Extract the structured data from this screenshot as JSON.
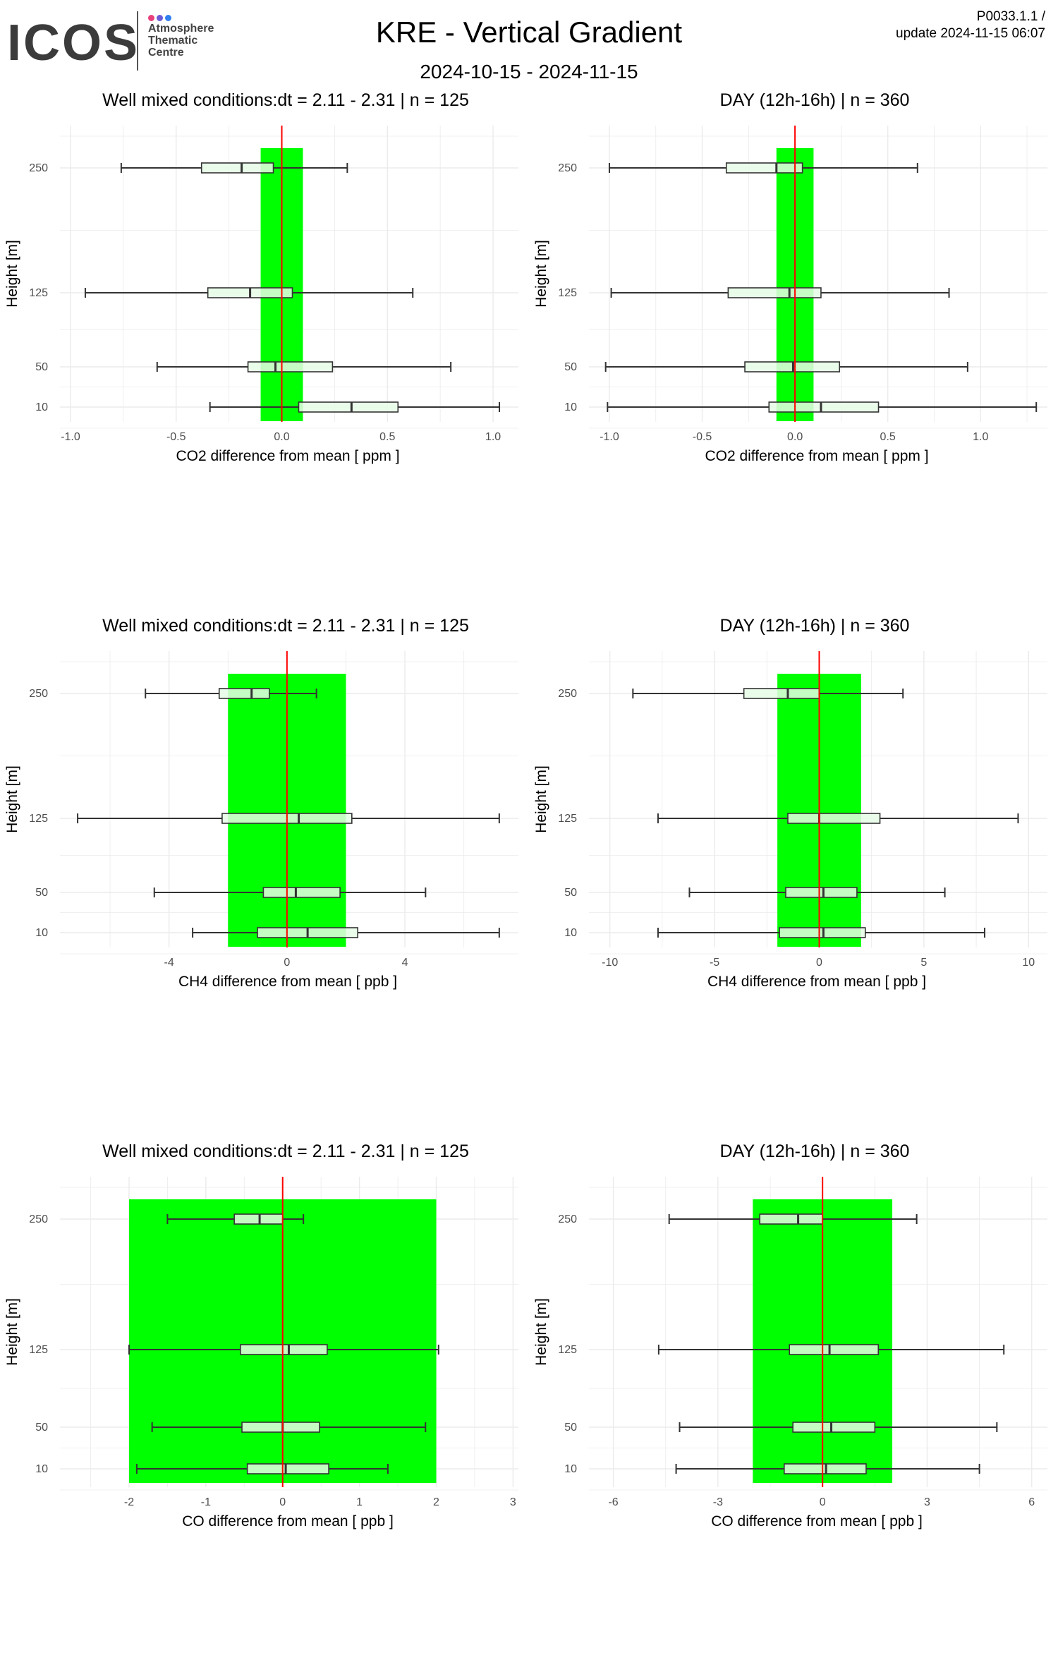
{
  "header": {
    "logo_text": "ICOS",
    "logo_sub": [
      "Atmosphere",
      "Thematic",
      "Centre"
    ],
    "title": "KRE - Vertical Gradient",
    "date_range": "2024-10-15 - 2024-11-15",
    "product_id": "P0033.1.1 /",
    "update": "update  2024-11-15 06:07"
  },
  "colors": {
    "band": "#00ff00",
    "zero_line": "#ff0000",
    "box_fill": "#e6fbe6",
    "box_stroke": "#333333",
    "grid": "#ebebeb",
    "logo_dots": [
      "#e7407a",
      "#6b5bd6",
      "#2f7ff0"
    ]
  },
  "chart_data": [
    {
      "id": "co2-well-mixed",
      "type": "boxplot",
      "title": "Well mixed conditions:dt = 2.11 - 2.31 | n = 125",
      "xlabel": "CO2  difference from mean [ ppm ]",
      "ylabel": "Height [m]",
      "xlim": [
        -1.05,
        1.12
      ],
      "xticks": [
        -1.0,
        -0.5,
        0.0,
        0.5,
        1.0
      ],
      "xtick_labels": [
        "-1.0",
        "-0.5",
        "0.0",
        "0.5",
        "1.0"
      ],
      "heights": [
        10,
        50,
        125,
        250
      ],
      "band": [
        -0.1,
        0.1
      ],
      "boxes": [
        {
          "height": 250,
          "whisker_low": -0.76,
          "q1": -0.38,
          "median": -0.19,
          "q3": -0.04,
          "whisker_high": 0.31
        },
        {
          "height": 125,
          "whisker_low": -0.93,
          "q1": -0.35,
          "median": -0.15,
          "q3": 0.05,
          "whisker_high": 0.62
        },
        {
          "height": 50,
          "whisker_low": -0.59,
          "q1": -0.16,
          "median": -0.03,
          "q3": 0.24,
          "whisker_high": 0.8
        },
        {
          "height": 10,
          "whisker_low": -0.34,
          "q1": 0.08,
          "median": 0.33,
          "q3": 0.55,
          "whisker_high": 1.03
        }
      ]
    },
    {
      "id": "co2-day",
      "type": "boxplot",
      "title": "DAY (12h-16h) | n = 360",
      "xlabel": "CO2  difference from mean [ ppm ]",
      "ylabel": "Height [m]",
      "xlim": [
        -1.11,
        1.36
      ],
      "xticks": [
        -1.0,
        -0.5,
        0.0,
        0.5,
        1.0
      ],
      "xtick_labels": [
        "-1.0",
        "-0.5",
        "0.0",
        "0.5",
        "1.0"
      ],
      "heights": [
        10,
        50,
        125,
        250
      ],
      "band": [
        -0.1,
        0.1
      ],
      "boxes": [
        {
          "height": 250,
          "whisker_low": -1.0,
          "q1": -0.37,
          "median": -0.1,
          "q3": 0.04,
          "whisker_high": 0.66
        },
        {
          "height": 125,
          "whisker_low": -0.99,
          "q1": -0.36,
          "median": -0.03,
          "q3": 0.14,
          "whisker_high": 0.83
        },
        {
          "height": 50,
          "whisker_low": -1.02,
          "q1": -0.27,
          "median": -0.01,
          "q3": 0.24,
          "whisker_high": 0.93
        },
        {
          "height": 10,
          "whisker_low": -1.01,
          "q1": -0.14,
          "median": 0.14,
          "q3": 0.45,
          "whisker_high": 1.3
        }
      ]
    },
    {
      "id": "ch4-well-mixed",
      "type": "boxplot",
      "title": "Well mixed conditions:dt = 2.11 - 2.31 | n = 125",
      "xlabel": "CH4  difference from mean [ ppb ]",
      "ylabel": "Height [m]",
      "xlim": [
        -7.7,
        7.85
      ],
      "xticks": [
        -4,
        0,
        4
      ],
      "xtick_labels": [
        "-4",
        "0",
        "4"
      ],
      "heights": [
        10,
        50,
        125,
        250
      ],
      "band": [
        -2,
        2
      ],
      "boxes": [
        {
          "height": 250,
          "whisker_low": -4.8,
          "q1": -2.3,
          "median": -1.2,
          "q3": -0.6,
          "whisker_high": 1.0
        },
        {
          "height": 125,
          "whisker_low": -7.1,
          "q1": -2.2,
          "median": 0.4,
          "q3": 2.2,
          "whisker_high": 7.2
        },
        {
          "height": 50,
          "whisker_low": -4.5,
          "q1": -0.8,
          "median": 0.3,
          "q3": 1.8,
          "whisker_high": 4.7
        },
        {
          "height": 10,
          "whisker_low": -3.2,
          "q1": -1.0,
          "median": 0.7,
          "q3": 2.4,
          "whisker_high": 7.2
        }
      ]
    },
    {
      "id": "ch4-day",
      "type": "boxplot",
      "title": "DAY (12h-16h) | n = 360",
      "xlabel": "CH4  difference from mean [ ppb ]",
      "ylabel": "Height [m]",
      "xlim": [
        -11.0,
        10.9
      ],
      "xticks": [
        -10,
        -5,
        0,
        5,
        10
      ],
      "xtick_labels": [
        "-10",
        "-5",
        "0",
        "5",
        "10"
      ],
      "heights": [
        10,
        50,
        125,
        250
      ],
      "band": [
        -2,
        2
      ],
      "boxes": [
        {
          "height": 250,
          "whisker_low": -8.9,
          "q1": -3.6,
          "median": -1.5,
          "q3": 0.0,
          "whisker_high": 4.0
        },
        {
          "height": 125,
          "whisker_low": -7.7,
          "q1": -1.5,
          "median": 0.0,
          "q3": 2.9,
          "whisker_high": 9.5
        },
        {
          "height": 50,
          "whisker_low": -6.2,
          "q1": -1.6,
          "median": 0.2,
          "q3": 1.8,
          "whisker_high": 6.0
        },
        {
          "height": 10,
          "whisker_low": -7.7,
          "q1": -1.9,
          "median": 0.2,
          "q3": 2.2,
          "whisker_high": 7.9
        }
      ]
    },
    {
      "id": "co-well-mixed",
      "type": "boxplot",
      "title": "Well mixed conditions:dt = 2.11 - 2.31 | n = 125",
      "xlabel": "CO  difference from mean [ ppb ]",
      "ylabel": "Height [m]",
      "xlim": [
        -2.9,
        3.07
      ],
      "xticks": [
        -2,
        -1,
        0,
        1,
        2,
        3
      ],
      "xtick_labels": [
        "-2",
        "-1",
        "0",
        "1",
        "2",
        "3"
      ],
      "heights": [
        10,
        50,
        125,
        250
      ],
      "band": [
        -2,
        2
      ],
      "boxes": [
        {
          "height": 250,
          "whisker_low": -1.5,
          "q1": -0.63,
          "median": -0.3,
          "q3": 0.0,
          "whisker_high": 0.27
        },
        {
          "height": 125,
          "whisker_low": -2.0,
          "q1": -0.55,
          "median": 0.08,
          "q3": 0.58,
          "whisker_high": 2.03
        },
        {
          "height": 50,
          "whisker_low": -1.7,
          "q1": -0.53,
          "median": 0.0,
          "q3": 0.48,
          "whisker_high": 1.86
        },
        {
          "height": 10,
          "whisker_low": -1.9,
          "q1": -0.46,
          "median": 0.04,
          "q3": 0.6,
          "whisker_high": 1.37
        }
      ]
    },
    {
      "id": "co-day",
      "type": "boxplot",
      "title": "DAY (12h-16h) | n = 360",
      "xlabel": "CO  difference from mean [ ppb ]",
      "ylabel": "Height [m]",
      "xlim": [
        -6.7,
        6.45
      ],
      "xticks": [
        -6,
        -3,
        0,
        3,
        6
      ],
      "xtick_labels": [
        "-6",
        "-3",
        "0",
        "3",
        "6"
      ],
      "heights": [
        10,
        50,
        125,
        250
      ],
      "band": [
        -2,
        2
      ],
      "boxes": [
        {
          "height": 250,
          "whisker_low": -4.4,
          "q1": -1.8,
          "median": -0.7,
          "q3": 0.0,
          "whisker_high": 2.7
        },
        {
          "height": 125,
          "whisker_low": -4.7,
          "q1": -0.95,
          "median": 0.2,
          "q3": 1.6,
          "whisker_high": 5.2
        },
        {
          "height": 50,
          "whisker_low": -4.1,
          "q1": -0.85,
          "median": 0.25,
          "q3": 1.5,
          "whisker_high": 5.0
        },
        {
          "height": 10,
          "whisker_low": -4.2,
          "q1": -1.1,
          "median": 0.1,
          "q3": 1.25,
          "whisker_high": 4.5
        }
      ]
    }
  ]
}
